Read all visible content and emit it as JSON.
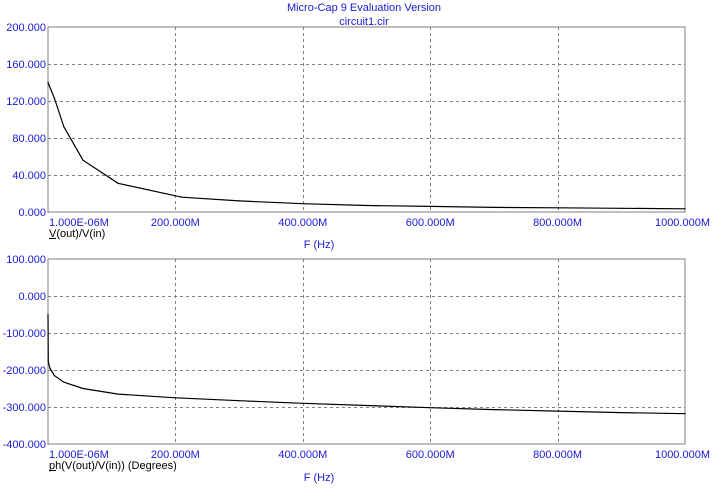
{
  "header": {
    "title": "Micro-Cap 9 Evaluation Version",
    "subtitle": "circuit1.cir"
  },
  "colors": {
    "axis_text": "#1a1ad6",
    "grid": "#7f7f7f",
    "frame": "#7f7f7f",
    "trace": "#000000",
    "background": "#ffffff"
  },
  "chart_data": [
    {
      "type": "line",
      "title": "",
      "xlabel": "F (Hz)",
      "ylabel": "V(out)/V(in)",
      "x_tick_labels": [
        "1.000E-06M",
        "200.000M",
        "400.000M",
        "600.000M",
        "800.000M",
        "1000.000M"
      ],
      "x_ticks_M": [
        0,
        200,
        400,
        600,
        800,
        1000
      ],
      "y_tick_labels": [
        "200.000",
        "160.000",
        "120.000",
        "80.000",
        "40.000",
        "0.000"
      ],
      "y_ticks": [
        200,
        160,
        120,
        80,
        40,
        0
      ],
      "xlim_M": [
        0,
        1000
      ],
      "ylim": [
        0,
        200
      ],
      "grid": true,
      "series": [
        {
          "x_M": [
            1e-06,
            10,
            25,
            55,
            110,
            210,
            300,
            400,
            500,
            600,
            700,
            800,
            900,
            1000
          ],
          "values": [
            140,
            123,
            92,
            56,
            31,
            16,
            12,
            9,
            7,
            6,
            5,
            4.5,
            4,
            3.5
          ]
        }
      ]
    },
    {
      "type": "line",
      "title": "",
      "xlabel": "F (Hz)",
      "ylabel": "ph(V(out)/V(in)) (Degrees)",
      "x_tick_labels": [
        "1.000E-06M",
        "200.000M",
        "400.000M",
        "600.000M",
        "800.000M",
        "1000.000M"
      ],
      "x_ticks_M": [
        0,
        200,
        400,
        600,
        800,
        1000
      ],
      "y_tick_labels": [
        "100.000",
        "0.000",
        "-100.000",
        "-200.000",
        "-300.000",
        "-400.000"
      ],
      "y_ticks": [
        100,
        0,
        -100,
        -200,
        -300,
        -400
      ],
      "xlim_M": [
        0,
        1000
      ],
      "ylim": [
        -400,
        100
      ],
      "grid": true,
      "series": [
        {
          "x_M": [
            1e-06,
            0.5,
            3,
            10,
            25,
            55,
            110,
            200,
            300,
            400,
            500,
            600,
            700,
            800,
            900,
            1000
          ],
          "values": [
            -50,
            -178,
            -195,
            -215,
            -233,
            -250,
            -265,
            -275,
            -283,
            -290,
            -296,
            -302,
            -307,
            -311,
            -315,
            -318
          ]
        }
      ]
    }
  ]
}
